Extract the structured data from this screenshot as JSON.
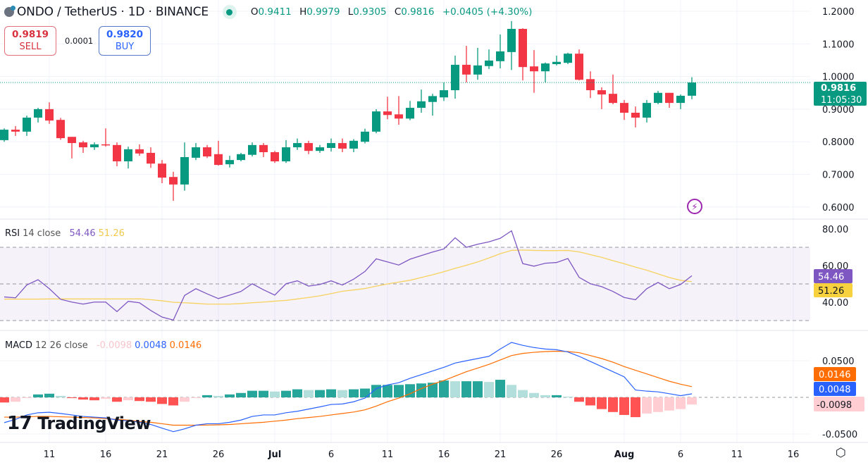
{
  "header": {
    "title": "ONDO / TetherUS · 1D · BINANCE",
    "ohlc": {
      "o_label": "O",
      "o": "0.9411",
      "h_label": "H",
      "h": "0.9979",
      "l_label": "L",
      "l": "0.9305",
      "c_label": "C",
      "c": "0.9816",
      "change": "+0.0405 (+4.30%)"
    },
    "market_status_icon": "green-dot",
    "sell": {
      "price": "0.9819",
      "label": "SELL"
    },
    "spread": "0.0001",
    "buy": {
      "price": "0.9820",
      "label": "BUY"
    }
  },
  "price_axis": {
    "ticks": [
      "1.2000",
      "1.1000",
      "1.0000",
      "0.9000",
      "0.8000",
      "0.7000",
      "0.6000"
    ],
    "current_price": "0.9816",
    "countdown": "11:05:30"
  },
  "rsi": {
    "label": "RSI",
    "params": "14 close",
    "value": "54.46",
    "ma_value": "51.26",
    "ticks": [
      "80.00",
      "60.00",
      "40.00"
    ]
  },
  "macd": {
    "label": "MACD",
    "params": "12 26 close",
    "hist_value": "-0.0098",
    "macd_value": "0.0048",
    "signal_value": "0.0146",
    "ticks": [
      "0.0500",
      "-0.0500"
    ]
  },
  "time_axis": {
    "ticks": [
      "11",
      "16",
      "21",
      "26",
      "Jul",
      "6",
      "11",
      "16",
      "21",
      "26",
      "Aug",
      "6",
      "11",
      "16"
    ]
  },
  "branding": {
    "name": "TradingView"
  },
  "icons": {
    "settings": "gear-icon",
    "alert": "lightning-icon"
  },
  "colors": {
    "up": "#089981",
    "down": "#f23645",
    "rsi": "#7e57c2",
    "rsi_ma": "#f7d25e",
    "macd": "#2962ff",
    "signal": "#ff6d00"
  },
  "chart_data": {
    "type": "candlestick",
    "interval": "1D",
    "ylim": [
      0.6,
      1.2
    ],
    "candles_ohlc": [
      [
        0.805,
        0.841,
        0.8,
        0.837
      ],
      [
        0.837,
        0.848,
        0.818,
        0.831
      ],
      [
        0.831,
        0.88,
        0.818,
        0.874
      ],
      [
        0.874,
        0.904,
        0.859,
        0.9
      ],
      [
        0.9,
        0.921,
        0.855,
        0.865
      ],
      [
        0.867,
        0.873,
        0.806,
        0.811
      ],
      [
        0.815,
        0.815,
        0.749,
        0.796
      ],
      [
        0.798,
        0.803,
        0.766,
        0.783
      ],
      [
        0.783,
        0.798,
        0.775,
        0.792
      ],
      [
        0.792,
        0.841,
        0.785,
        0.79
      ],
      [
        0.79,
        0.798,
        0.725,
        0.74
      ],
      [
        0.74,
        0.785,
        0.718,
        0.777
      ],
      [
        0.777,
        0.792,
        0.757,
        0.764
      ],
      [
        0.766,
        0.783,
        0.72,
        0.733
      ],
      [
        0.733,
        0.744,
        0.673,
        0.69
      ],
      [
        0.692,
        0.708,
        0.619,
        0.669
      ],
      [
        0.669,
        0.798,
        0.65,
        0.753
      ],
      [
        0.751,
        0.796,
        0.744,
        0.783
      ],
      [
        0.783,
        0.79,
        0.75,
        0.755
      ],
      [
        0.762,
        0.803,
        0.727,
        0.729
      ],
      [
        0.731,
        0.757,
        0.721,
        0.744
      ],
      [
        0.744,
        0.766,
        0.74,
        0.762
      ],
      [
        0.76,
        0.798,
        0.755,
        0.79
      ],
      [
        0.79,
        0.796,
        0.753,
        0.768
      ],
      [
        0.768,
        0.772,
        0.735,
        0.74
      ],
      [
        0.74,
        0.805,
        0.735,
        0.783
      ],
      [
        0.783,
        0.81,
        0.775,
        0.796
      ],
      [
        0.796,
        0.803,
        0.762,
        0.772
      ],
      [
        0.772,
        0.79,
        0.766,
        0.783
      ],
      [
        0.781,
        0.81,
        0.77,
        0.796
      ],
      [
        0.796,
        0.81,
        0.768,
        0.779
      ],
      [
        0.779,
        0.808,
        0.768,
        0.803
      ],
      [
        0.8,
        0.84,
        0.795,
        0.831
      ],
      [
        0.831,
        0.9,
        0.826,
        0.893
      ],
      [
        0.893,
        0.938,
        0.869,
        0.882
      ],
      [
        0.884,
        0.94,
        0.852,
        0.871
      ],
      [
        0.871,
        0.925,
        0.866,
        0.904
      ],
      [
        0.904,
        0.96,
        0.889,
        0.924
      ],
      [
        0.922,
        0.947,
        0.88,
        0.94
      ],
      [
        0.936,
        0.982,
        0.925,
        0.958
      ],
      [
        0.958,
        1.064,
        0.932,
        1.036
      ],
      [
        1.036,
        1.094,
        0.982,
        1.006
      ],
      [
        1.006,
        1.088,
        0.99,
        1.034
      ],
      [
        1.032,
        1.083,
        1.023,
        1.049
      ],
      [
        1.047,
        1.129,
        1.025,
        1.077
      ],
      [
        1.075,
        1.17,
        1.02,
        1.146
      ],
      [
        1.146,
        1.148,
        0.988,
        1.029
      ],
      [
        1.031,
        1.081,
        0.95,
        1.016
      ],
      [
        1.016,
        1.043,
        0.982,
        1.04
      ],
      [
        1.038,
        1.064,
        1.034,
        1.045
      ],
      [
        1.042,
        1.073,
        1.038,
        1.07
      ],
      [
        1.07,
        1.083,
        0.988,
        0.99
      ],
      [
        0.992,
        1.016,
        0.934,
        0.958
      ],
      [
        0.958,
        0.967,
        0.9,
        0.945
      ],
      [
        0.947,
        1.006,
        0.915,
        0.919
      ],
      [
        0.919,
        0.928,
        0.867,
        0.889
      ],
      [
        0.889,
        0.908,
        0.844,
        0.874
      ],
      [
        0.874,
        0.928,
        0.859,
        0.919
      ],
      [
        0.919,
        0.956,
        0.915,
        0.95
      ],
      [
        0.95,
        0.95,
        0.904,
        0.919
      ],
      [
        0.919,
        0.945,
        0.9,
        0.941
      ],
      [
        0.9411,
        0.9979,
        0.9305,
        0.9816
      ]
    ],
    "rsi": [
      42.9,
      42.4,
      49.4,
      52.3,
      47.4,
      41.6,
      40.1,
      39.0,
      40.1,
      40.1,
      34.9,
      40.5,
      39.7,
      35.5,
      31.9,
      30.3,
      43.7,
      47.4,
      44.6,
      42.0,
      43.9,
      45.9,
      50.1,
      46.8,
      43.9,
      50.1,
      51.7,
      48.8,
      49.7,
      51.7,
      49.4,
      52.6,
      56.8,
      63.7,
      62.0,
      60.3,
      63.5,
      65.5,
      67.4,
      69.1,
      75.2,
      70.0,
      71.7,
      73.0,
      74.9,
      79.0,
      61.1,
      59.7,
      61.3,
      61.7,
      63.9,
      53.6,
      50.1,
      48.5,
      45.9,
      42.6,
      41.4,
      47.4,
      50.8,
      47.4,
      49.7,
      54.46
    ],
    "rsi_ma": [
      41.7,
      41.7,
      41.7,
      41.7,
      41.8,
      41.8,
      41.8,
      41.8,
      41.8,
      41.8,
      41.8,
      41.8,
      41.9,
      41.4,
      40.8,
      40.0,
      39.7,
      39.4,
      39.0,
      39.0,
      39.0,
      39.3,
      39.7,
      40.1,
      40.6,
      41.0,
      41.8,
      42.6,
      43.5,
      44.7,
      46.0,
      46.7,
      47.5,
      48.8,
      50.0,
      51.0,
      52.0,
      53.5,
      55.0,
      56.7,
      58.5,
      60.2,
      62.0,
      64.2,
      66.5,
      68.3,
      68.5,
      68.3,
      68.2,
      68.2,
      68.3,
      67.5,
      66.0,
      64.5,
      62.7,
      61.0,
      59.2,
      57.5,
      55.5,
      53.5,
      52.0,
      51.26
    ],
    "rsi_levels": {
      "upper": 70,
      "middle": 50,
      "lower": 30
    },
    "macd_line": [
      -0.0345,
      -0.03,
      -0.024,
      -0.021,
      -0.0203,
      -0.022,
      -0.024,
      -0.026,
      -0.027,
      -0.028,
      -0.031,
      -0.032,
      -0.034,
      -0.037,
      -0.042,
      -0.0468,
      -0.043,
      -0.038,
      -0.036,
      -0.036,
      -0.034,
      -0.031,
      -0.026,
      -0.024,
      -0.024,
      -0.021,
      -0.019,
      -0.016,
      -0.013,
      -0.0097,
      -0.009,
      -0.006,
      -0.001,
      0.012,
      0.017,
      0.02,
      0.026,
      0.031,
      0.036,
      0.041,
      0.0468,
      0.05,
      0.053,
      0.056,
      0.066,
      0.075,
      0.071,
      0.068,
      0.066,
      0.065,
      0.062,
      0.056,
      0.049,
      0.042,
      0.035,
      0.028,
      0.01,
      0.0085,
      0.0075,
      0.005,
      0.0023,
      0.0048
    ],
    "signal_line": [
      -0.027,
      -0.027,
      -0.0265,
      -0.026,
      -0.026,
      -0.0265,
      -0.027,
      -0.0275,
      -0.028,
      -0.029,
      -0.03,
      -0.031,
      -0.033,
      -0.034,
      -0.036,
      -0.038,
      -0.038,
      -0.038,
      -0.0378,
      -0.0375,
      -0.037,
      -0.036,
      -0.035,
      -0.034,
      -0.0325,
      -0.031,
      -0.029,
      -0.0275,
      -0.026,
      -0.024,
      -0.022,
      -0.02,
      -0.017,
      -0.012,
      -0.006,
      -0.001,
      0.005,
      0.012,
      0.018,
      0.023,
      0.029,
      0.035,
      0.04,
      0.045,
      0.051,
      0.057,
      0.06,
      0.0615,
      0.0625,
      0.063,
      0.0625,
      0.061,
      0.057,
      0.053,
      0.048,
      0.042,
      0.037,
      0.032,
      0.027,
      0.022,
      0.018,
      0.0146
    ],
    "histogram": [
      -0.007,
      -0.006,
      -0.001,
      0.004,
      0.005,
      0.002,
      -0.001,
      -0.003,
      -0.004,
      -0.002,
      -0.006,
      -0.004,
      -0.005,
      -0.006,
      -0.009,
      -0.011,
      -0.006,
      -0.001,
      0.003,
      0.002,
      0.004,
      0.006,
      0.009,
      0.009,
      0.008,
      0.009,
      0.011,
      0.01,
      0.01,
      0.011,
      0.01,
      0.011,
      0.012,
      0.017,
      0.017,
      0.017,
      0.018,
      0.019,
      0.02,
      0.023,
      0.022,
      0.022,
      0.022,
      0.021,
      0.024,
      0.017,
      0.01,
      0.006,
      0.003,
      0.003,
      0.001,
      -0.006,
      -0.011,
      -0.016,
      -0.02,
      -0.024,
      -0.027,
      -0.022,
      -0.02,
      -0.018,
      -0.016,
      -0.0098
    ],
    "macd_ylim": [
      -0.06,
      0.08
    ]
  }
}
